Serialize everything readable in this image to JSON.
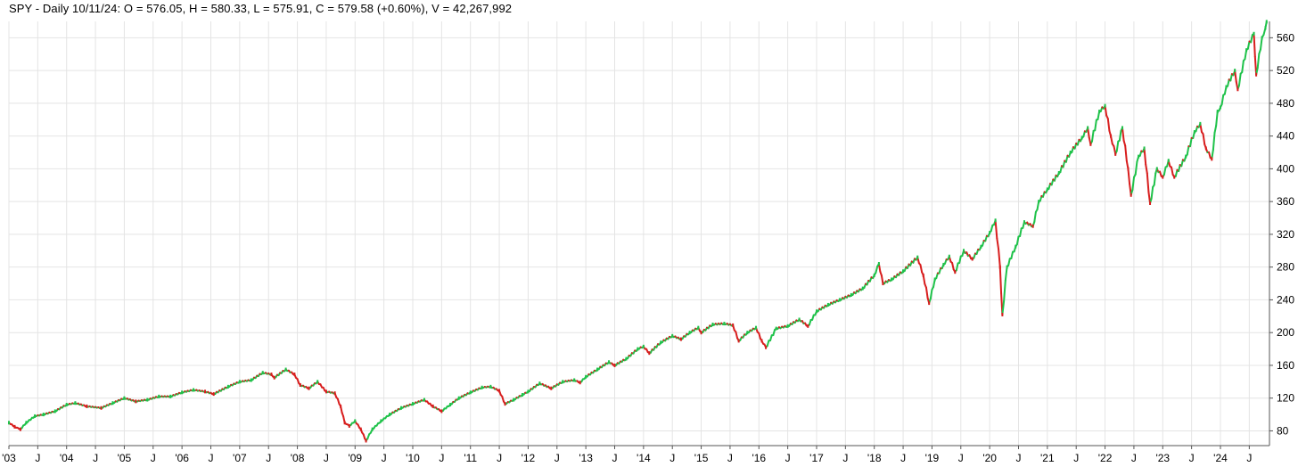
{
  "chart_data": {
    "type": "line",
    "title": "SPY - Daily 10/11/24:  O = 576.05,  H = 580.33,  L = 575.91,  C = 579.58 (+0.60%), V = 42,267,992",
    "xlabel": "",
    "ylabel": "",
    "ylim": [
      62,
      580
    ],
    "xlim": [
      2003.0,
      2024.85
    ],
    "grid": true,
    "y_ticks": [
      80,
      120,
      160,
      200,
      240,
      280,
      320,
      360,
      400,
      440,
      480,
      520,
      560
    ],
    "x_ticks": [
      {
        "label": "'03",
        "x": 2003.0
      },
      {
        "label": "J",
        "x": 2003.5
      },
      {
        "label": "'04",
        "x": 2004.0
      },
      {
        "label": "J",
        "x": 2004.5
      },
      {
        "label": "'05",
        "x": 2005.0
      },
      {
        "label": "J",
        "x": 2005.5
      },
      {
        "label": "'06",
        "x": 2006.0
      },
      {
        "label": "J",
        "x": 2006.5
      },
      {
        "label": "'07",
        "x": 2007.0
      },
      {
        "label": "J",
        "x": 2007.5
      },
      {
        "label": "'08",
        "x": 2008.0
      },
      {
        "label": "J",
        "x": 2008.5
      },
      {
        "label": "'09",
        "x": 2009.0
      },
      {
        "label": "J",
        "x": 2009.5
      },
      {
        "label": "'10",
        "x": 2010.0
      },
      {
        "label": "J",
        "x": 2010.5
      },
      {
        "label": "'11",
        "x": 2011.0
      },
      {
        "label": "J",
        "x": 2011.5
      },
      {
        "label": "'12",
        "x": 2012.0
      },
      {
        "label": "J",
        "x": 2012.5
      },
      {
        "label": "'13",
        "x": 2013.0
      },
      {
        "label": "J",
        "x": 2013.5
      },
      {
        "label": "'14",
        "x": 2014.0
      },
      {
        "label": "J",
        "x": 2014.5
      },
      {
        "label": "'15",
        "x": 2015.0
      },
      {
        "label": "J",
        "x": 2015.5
      },
      {
        "label": "'16",
        "x": 2016.0
      },
      {
        "label": "J",
        "x": 2016.5
      },
      {
        "label": "'17",
        "x": 2017.0
      },
      {
        "label": "J",
        "x": 2017.5
      },
      {
        "label": "'18",
        "x": 2018.0
      },
      {
        "label": "J",
        "x": 2018.5
      },
      {
        "label": "'19",
        "x": 2019.0
      },
      {
        "label": "J",
        "x": 2019.5
      },
      {
        "label": "'20",
        "x": 2020.0
      },
      {
        "label": "J",
        "x": 2020.5
      },
      {
        "label": "'21",
        "x": 2021.0
      },
      {
        "label": "J",
        "x": 2021.5
      },
      {
        "label": "'22",
        "x": 2022.0
      },
      {
        "label": "J",
        "x": 2022.5
      },
      {
        "label": "'23",
        "x": 2023.0
      },
      {
        "label": "J",
        "x": 2023.5
      },
      {
        "label": "'24",
        "x": 2024.0
      },
      {
        "label": "J",
        "x": 2024.5
      }
    ],
    "series": [
      {
        "color_up": "#1fc24a",
        "color_down": "#d81e1e",
        "points": [
          [
            2003.0,
            90
          ],
          [
            2003.1,
            85
          ],
          [
            2003.2,
            82
          ],
          [
            2003.3,
            90
          ],
          [
            2003.45,
            98
          ],
          [
            2003.6,
            100
          ],
          [
            2003.8,
            104
          ],
          [
            2004.0,
            112
          ],
          [
            2004.15,
            114
          ],
          [
            2004.35,
            110
          ],
          [
            2004.6,
            108
          ],
          [
            2004.8,
            114
          ],
          [
            2005.0,
            120
          ],
          [
            2005.2,
            116
          ],
          [
            2005.4,
            118
          ],
          [
            2005.6,
            122
          ],
          [
            2005.8,
            122
          ],
          [
            2006.0,
            127
          ],
          [
            2006.2,
            130
          ],
          [
            2006.4,
            128
          ],
          [
            2006.55,
            125
          ],
          [
            2006.8,
            134
          ],
          [
            2007.0,
            140
          ],
          [
            2007.2,
            142
          ],
          [
            2007.4,
            151
          ],
          [
            2007.55,
            149
          ],
          [
            2007.6,
            145
          ],
          [
            2007.8,
            155
          ],
          [
            2007.95,
            149
          ],
          [
            2008.05,
            136
          ],
          [
            2008.2,
            132
          ],
          [
            2008.35,
            140
          ],
          [
            2008.5,
            128
          ],
          [
            2008.65,
            126
          ],
          [
            2008.75,
            110
          ],
          [
            2008.82,
            90
          ],
          [
            2008.9,
            86
          ],
          [
            2009.0,
            92
          ],
          [
            2009.1,
            82
          ],
          [
            2009.19,
            68
          ],
          [
            2009.3,
            82
          ],
          [
            2009.45,
            92
          ],
          [
            2009.6,
            100
          ],
          [
            2009.8,
            108
          ],
          [
            2010.0,
            113
          ],
          [
            2010.2,
            118
          ],
          [
            2010.35,
            110
          ],
          [
            2010.5,
            104
          ],
          [
            2010.65,
            112
          ],
          [
            2010.8,
            120
          ],
          [
            2011.0,
            127
          ],
          [
            2011.2,
            133
          ],
          [
            2011.35,
            134
          ],
          [
            2011.5,
            129
          ],
          [
            2011.6,
            113
          ],
          [
            2011.75,
            118
          ],
          [
            2011.9,
            124
          ],
          [
            2012.0,
            128
          ],
          [
            2012.2,
            138
          ],
          [
            2012.4,
            132
          ],
          [
            2012.6,
            140
          ],
          [
            2012.8,
            142
          ],
          [
            2012.9,
            139
          ],
          [
            2013.0,
            146
          ],
          [
            2013.2,
            155
          ],
          [
            2013.4,
            164
          ],
          [
            2013.5,
            160
          ],
          [
            2013.7,
            168
          ],
          [
            2013.9,
            180
          ],
          [
            2014.0,
            183
          ],
          [
            2014.1,
            175
          ],
          [
            2014.3,
            188
          ],
          [
            2014.5,
            196
          ],
          [
            2014.65,
            192
          ],
          [
            2014.8,
            200
          ],
          [
            2014.95,
            206
          ],
          [
            2015.0,
            200
          ],
          [
            2015.2,
            210
          ],
          [
            2015.4,
            211
          ],
          [
            2015.55,
            209
          ],
          [
            2015.65,
            190
          ],
          [
            2015.8,
            200
          ],
          [
            2015.95,
            206
          ],
          [
            2016.05,
            190
          ],
          [
            2016.12,
            182
          ],
          [
            2016.3,
            205
          ],
          [
            2016.5,
            208
          ],
          [
            2016.7,
            216
          ],
          [
            2016.85,
            208
          ],
          [
            2017.0,
            226
          ],
          [
            2017.2,
            234
          ],
          [
            2017.4,
            240
          ],
          [
            2017.6,
            246
          ],
          [
            2017.8,
            254
          ],
          [
            2018.0,
            270
          ],
          [
            2018.08,
            284
          ],
          [
            2018.15,
            260
          ],
          [
            2018.3,
            265
          ],
          [
            2018.5,
            275
          ],
          [
            2018.75,
            292
          ],
          [
            2018.85,
            270
          ],
          [
            2018.95,
            236
          ],
          [
            2019.05,
            265
          ],
          [
            2019.2,
            283
          ],
          [
            2019.3,
            293
          ],
          [
            2019.4,
            274
          ],
          [
            2019.55,
            300
          ],
          [
            2019.7,
            290
          ],
          [
            2019.85,
            305
          ],
          [
            2020.0,
            322
          ],
          [
            2020.1,
            337
          ],
          [
            2020.18,
            280
          ],
          [
            2020.22,
            222
          ],
          [
            2020.3,
            280
          ],
          [
            2020.45,
            305
          ],
          [
            2020.6,
            335
          ],
          [
            2020.75,
            330
          ],
          [
            2020.85,
            360
          ],
          [
            2021.0,
            375
          ],
          [
            2021.2,
            395
          ],
          [
            2021.4,
            420
          ],
          [
            2021.6,
            438
          ],
          [
            2021.7,
            450
          ],
          [
            2021.75,
            430
          ],
          [
            2021.9,
            470
          ],
          [
            2022.0,
            477
          ],
          [
            2022.1,
            440
          ],
          [
            2022.18,
            418
          ],
          [
            2022.3,
            450
          ],
          [
            2022.4,
            400
          ],
          [
            2022.45,
            368
          ],
          [
            2022.58,
            415
          ],
          [
            2022.68,
            425
          ],
          [
            2022.78,
            358
          ],
          [
            2022.9,
            400
          ],
          [
            2023.0,
            390
          ],
          [
            2023.1,
            410
          ],
          [
            2023.2,
            390
          ],
          [
            2023.4,
            415
          ],
          [
            2023.55,
            445
          ],
          [
            2023.65,
            455
          ],
          [
            2023.75,
            425
          ],
          [
            2023.85,
            412
          ],
          [
            2023.95,
            470
          ],
          [
            2024.0,
            475
          ],
          [
            2024.1,
            500
          ],
          [
            2024.25,
            520
          ],
          [
            2024.3,
            497
          ],
          [
            2024.45,
            545
          ],
          [
            2024.58,
            565
          ],
          [
            2024.62,
            515
          ],
          [
            2024.72,
            560
          ],
          [
            2024.78,
            572
          ],
          [
            2024.8,
            579.58
          ]
        ]
      }
    ]
  }
}
